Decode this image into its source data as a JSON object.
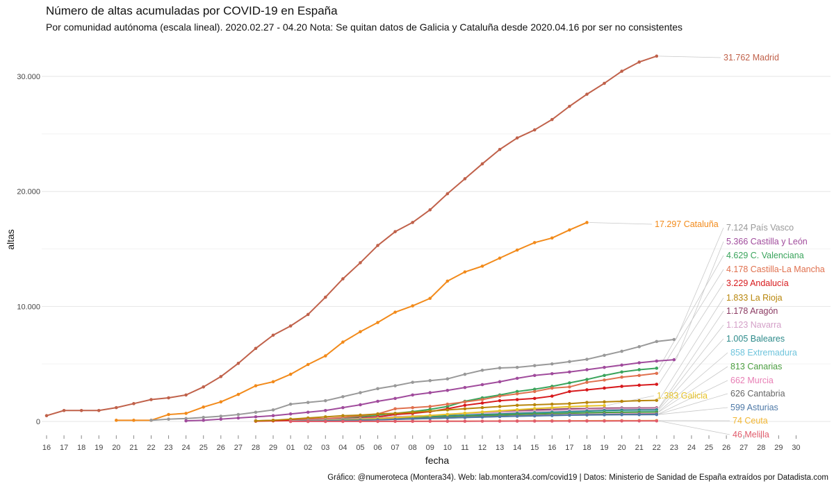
{
  "title": "Número de altas acumuladas por COVID-19 en España",
  "subtitle": "Por comunidad autónoma (escala lineal). 2020.02.27 - 04.20 Nota: Se quitan datos de Galicia y Cataluña desde 2020.04.16 por ser no consistentes",
  "caption": "Gráfico: @numeroteca (Montera34). Web: lab.montera34.com/covid19 | Datos: Ministerio de Sanidad de España extraídos por Datadista.com",
  "chart_data": {
    "type": "line",
    "title": "Número de altas acumuladas por COVID-19 en España",
    "xlabel": "fecha",
    "ylabel": "altas",
    "ylim": [
      0,
      32000
    ],
    "yticks": [
      0,
      10000,
      20000,
      30000
    ],
    "ytick_labels": [
      "0",
      "10.000",
      "20.000",
      "30.000"
    ],
    "grid": true,
    "legend": "direct labels at line ends (right)",
    "x_tick_labels": [
      "16",
      "17",
      "18",
      "19",
      "20",
      "21",
      "22",
      "23",
      "24",
      "25",
      "26",
      "27",
      "28",
      "29",
      "01",
      "02",
      "03",
      "04",
      "05",
      "06",
      "07",
      "08",
      "09",
      "10",
      "11",
      "12",
      "13",
      "14",
      "15",
      "16",
      "17",
      "18",
      "19",
      "20",
      "21",
      "22",
      "23",
      "24",
      "25",
      "26",
      "27",
      "28",
      "29",
      "30"
    ],
    "x_range_days": [
      0,
      44
    ],
    "x_note": "x values are day offsets from 2020-02-16 (0 = Feb 16, 14 = Mar 1, 45 = Apr 1)",
    "series": [
      {
        "name": "Madrid",
        "label": "31.762 Madrid",
        "color": "#c0614a",
        "start": 0,
        "values": [
          500,
          950,
          950,
          950,
          1200,
          1550,
          1900,
          2050,
          2300,
          3000,
          3900,
          5050,
          6350,
          7500,
          8300,
          9300,
          10800,
          12400,
          13800,
          15300,
          16500,
          17300,
          18400,
          19800,
          21100,
          22400,
          23650,
          24650,
          25350,
          26250,
          27400,
          28450,
          29400,
          30450,
          31250,
          31762
        ]
      },
      {
        "name": "Cataluña",
        "label": "17.297 Cataluña",
        "color": "#f28a1a",
        "start": 4,
        "values": [
          100,
          100,
          100,
          600,
          700,
          1250,
          1700,
          2350,
          3100,
          3450,
          4100,
          4950,
          5700,
          6900,
          7800,
          8600,
          9500,
          10050,
          10700,
          12200,
          13000,
          13500,
          14200,
          14900,
          15550,
          15950,
          16650,
          17297
        ]
      },
      {
        "name": "País Vasco",
        "label": "7.124 País Vasco",
        "color": "#999999",
        "start": 6,
        "values": [
          100,
          200,
          250,
          350,
          450,
          600,
          800,
          1000,
          1500,
          1650,
          1800,
          2150,
          2500,
          2850,
          3100,
          3400,
          3550,
          3700,
          4100,
          4450,
          4650,
          4700,
          4850,
          5000,
          5200,
          5400,
          5750,
          6100,
          6500,
          6950,
          7124
        ]
      },
      {
        "name": "Castilla y León",
        "label": "5.366 Castilla y León",
        "color": "#a04b9c",
        "start": 8,
        "values": [
          50,
          100,
          200,
          300,
          400,
          500,
          650,
          800,
          950,
          1200,
          1450,
          1750,
          2000,
          2300,
          2500,
          2700,
          2950,
          3200,
          3450,
          3750,
          4000,
          4150,
          4300,
          4500,
          4700,
          4900,
          5100,
          5250,
          5366
        ]
      },
      {
        "name": "C. Valenciana",
        "label": "4.629 C. Valenciana",
        "color": "#3aa45c",
        "start": 12,
        "values": [
          50,
          100,
          150,
          200,
          250,
          300,
          400,
          550,
          700,
          850,
          1050,
          1300,
          1750,
          2050,
          2300,
          2600,
          2800,
          3050,
          3350,
          3650,
          4000,
          4300,
          4500,
          4629
        ]
      },
      {
        "name": "Castilla-La Mancha",
        "label": "4.178 Castilla-La Mancha",
        "color": "#e0704e",
        "start": 12,
        "values": [
          50,
          100,
          150,
          200,
          250,
          350,
          500,
          650,
          1100,
          1200,
          1300,
          1500,
          1700,
          1900,
          2200,
          2400,
          2600,
          2900,
          3000,
          3400,
          3600,
          3850,
          4000,
          4178
        ]
      },
      {
        "name": "Andalucía",
        "label": "3.229 Andalucía",
        "color": "#d7191c",
        "start": 12,
        "values": [
          20,
          50,
          80,
          120,
          160,
          200,
          300,
          400,
          600,
          700,
          850,
          1100,
          1400,
          1600,
          1800,
          1900,
          2000,
          2200,
          2600,
          2750,
          2900,
          3050,
          3150,
          3229
        ]
      },
      {
        "name": "La Rioja",
        "label": "1.833 La Rioja",
        "color": "#b8860b",
        "start": 12,
        "values": [
          50,
          100,
          200,
          300,
          400,
          500,
          550,
          650,
          700,
          800,
          900,
          1000,
          1100,
          1200,
          1300,
          1400,
          1450,
          1500,
          1550,
          1650,
          1700,
          1750,
          1800,
          1833
        ]
      },
      {
        "name": "Aragón",
        "label": "1.178 Aragón",
        "color": "#8b3a62",
        "start": 14,
        "values": [
          50,
          100,
          150,
          200,
          250,
          300,
          400,
          450,
          500,
          600,
          700,
          800,
          850,
          950,
          1000,
          1050,
          1100,
          1120,
          1150,
          1165,
          1170,
          1178
        ]
      },
      {
        "name": "Navarra",
        "label": "1.123 Navarra",
        "color": "#d4a0c8",
        "start": 14,
        "values": [
          50,
          100,
          150,
          200,
          250,
          300,
          400,
          450,
          500,
          600,
          700,
          750,
          800,
          850,
          900,
          950,
          1000,
          1050,
          1080,
          1100,
          1110,
          1123
        ]
      },
      {
        "name": "Baleares",
        "label": "1.005 Baleares",
        "color": "#2c8a8a",
        "start": 14,
        "values": [
          30,
          60,
          100,
          150,
          200,
          250,
          300,
          350,
          400,
          500,
          550,
          600,
          650,
          700,
          750,
          800,
          850,
          900,
          950,
          980,
          995,
          1005
        ]
      },
      {
        "name": "Extremadura",
        "label": "858 Extremadura",
        "color": "#6fc4dc",
        "start": 14,
        "values": [
          20,
          40,
          80,
          120,
          160,
          200,
          250,
          300,
          350,
          400,
          450,
          500,
          550,
          600,
          650,
          700,
          750,
          780,
          810,
          830,
          845,
          858
        ]
      },
      {
        "name": "Canarias",
        "label": "813 Canarias",
        "color": "#4a9d3f",
        "start": 14,
        "values": [
          20,
          40,
          80,
          120,
          160,
          200,
          250,
          300,
          350,
          400,
          450,
          500,
          550,
          600,
          640,
          680,
          720,
          750,
          780,
          795,
          805,
          813
        ]
      },
      {
        "name": "Murcia",
        "label": "662 Murcia",
        "color": "#e87fb5",
        "start": 14,
        "values": [
          20,
          40,
          60,
          90,
          120,
          160,
          200,
          240,
          280,
          320,
          360,
          400,
          440,
          480,
          520,
          560,
          590,
          610,
          630,
          645,
          655,
          662
        ]
      },
      {
        "name": "Cantabria",
        "label": "626 Cantabria",
        "color": "#666666",
        "start": 14,
        "values": [
          20,
          40,
          60,
          90,
          120,
          150,
          190,
          230,
          270,
          310,
          350,
          390,
          430,
          470,
          500,
          530,
          560,
          580,
          600,
          612,
          620,
          626
        ]
      },
      {
        "name": "Galicia",
        "label": "1.383 Galicia",
        "color": "#e6c229",
        "start": 14,
        "values": [
          20,
          40,
          80,
          120,
          180,
          250,
          330,
          420,
          520,
          620,
          720,
          820,
          920,
          1020,
          1120,
          1200,
          1280,
          1340,
          1383
        ]
      },
      {
        "name": "Asturias",
        "label": "599 Asturias",
        "color": "#4e79a7",
        "start": 14,
        "values": [
          10,
          30,
          50,
          80,
          110,
          140,
          180,
          220,
          260,
          300,
          340,
          380,
          420,
          450,
          480,
          510,
          540,
          560,
          575,
          585,
          592,
          599
        ]
      },
      {
        "name": "Ceuta",
        "label": "74 Ceuta",
        "color": "#f2b632",
        "start": 14,
        "values": [
          0,
          0,
          2,
          4,
          6,
          8,
          10,
          14,
          18,
          22,
          26,
          30,
          35,
          40,
          45,
          50,
          55,
          60,
          65,
          68,
          71,
          74
        ]
      },
      {
        "name": "Melilla",
        "label": "46 Melilla",
        "color": "#e05c6c",
        "start": 14,
        "values": [
          0,
          0,
          1,
          2,
          4,
          6,
          8,
          10,
          12,
          15,
          18,
          21,
          24,
          27,
          30,
          33,
          36,
          39,
          41,
          43,
          45,
          46
        ]
      }
    ]
  }
}
